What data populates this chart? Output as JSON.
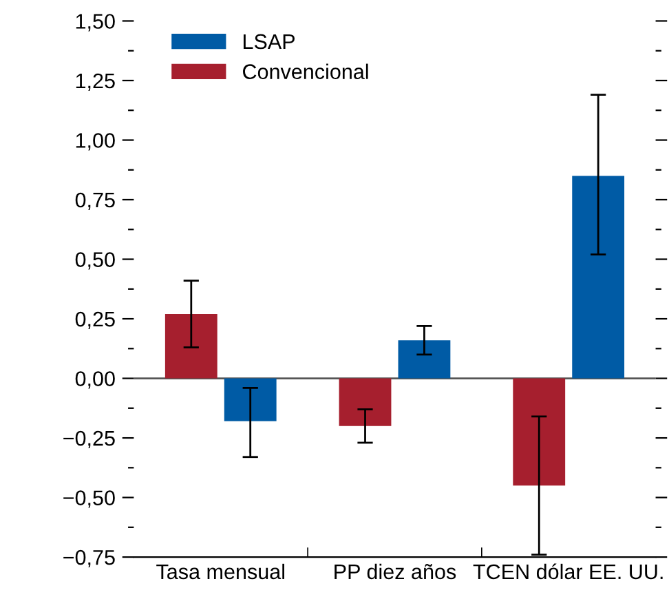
{
  "chart_data": {
    "type": "bar",
    "categories": [
      "Tasa mensual",
      "PP diez años",
      "TCEN dólar EE. UU."
    ],
    "series": [
      {
        "name": "Convencional",
        "color": "#a61f2e",
        "values": [
          0.27,
          -0.2,
          -0.45
        ],
        "errors": [
          [
            0.13,
            0.41
          ],
          [
            -0.27,
            -0.13
          ],
          [
            -0.74,
            -0.16
          ]
        ]
      },
      {
        "name": "LSAP",
        "color": "#005ba5",
        "values": [
          -0.18,
          0.16,
          0.85
        ],
        "errors": [
          [
            -0.33,
            -0.04
          ],
          [
            0.1,
            0.22
          ],
          [
            0.52,
            1.19
          ]
        ]
      }
    ],
    "ylim": [
      -0.75,
      1.5
    ],
    "yticks": [
      {
        "value": -0.75,
        "label": "−0,75"
      },
      {
        "value": -0.625,
        "label": null
      },
      {
        "value": -0.5,
        "label": "−0,50"
      },
      {
        "value": -0.375,
        "label": null
      },
      {
        "value": -0.25,
        "label": "−0,25"
      },
      {
        "value": -0.125,
        "label": null
      },
      {
        "value": 0,
        "label": "0,00"
      },
      {
        "value": 0.125,
        "label": null
      },
      {
        "value": 0.25,
        "label": "0,25"
      },
      {
        "value": 0.375,
        "label": null
      },
      {
        "value": 0.5,
        "label": "0,50"
      },
      {
        "value": 0.625,
        "label": null
      },
      {
        "value": 0.75,
        "label": "0,75"
      },
      {
        "value": 0.875,
        "label": null
      },
      {
        "value": 1.0,
        "label": "1,00"
      },
      {
        "value": 1.125,
        "label": null
      },
      {
        "value": 1.25,
        "label": "1,25"
      },
      {
        "value": 1.375,
        "label": null
      },
      {
        "value": 1.5,
        "label": "1,50"
      }
    ],
    "ref_lines": [
      {
        "axis": "y",
        "value": 0,
        "color": "#555555"
      }
    ],
    "legend": "top left"
  }
}
